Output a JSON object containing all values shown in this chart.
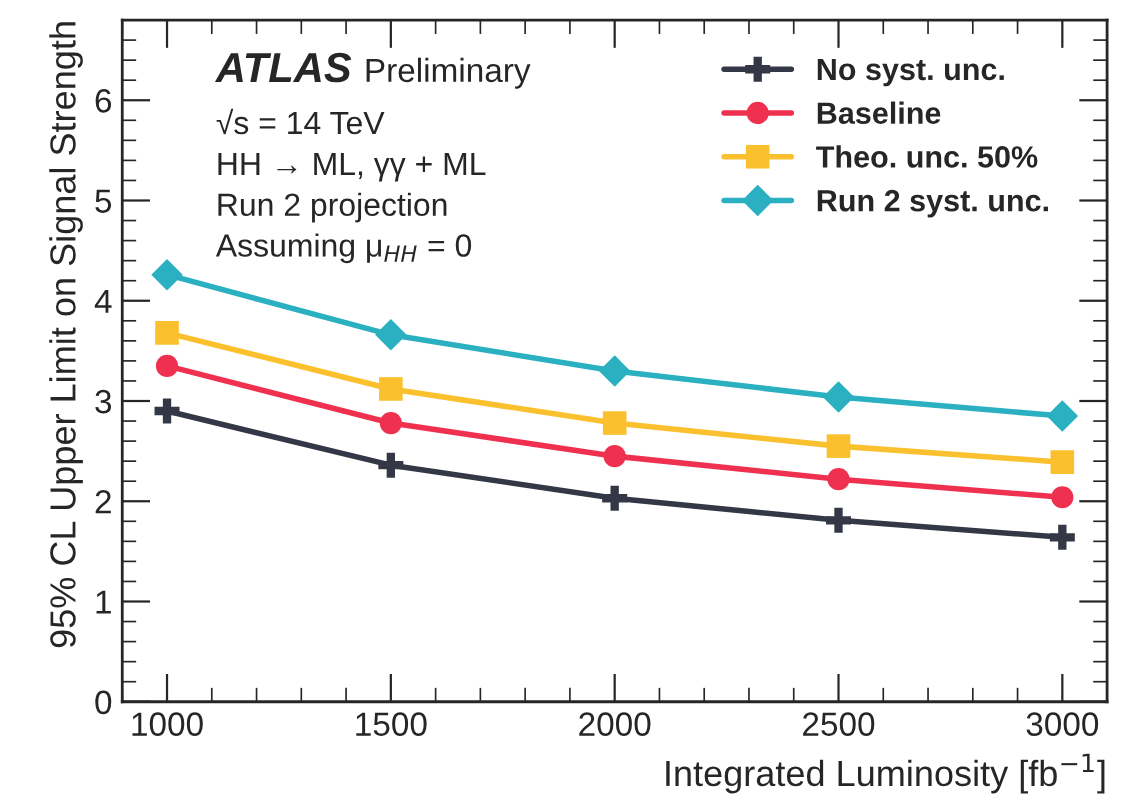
{
  "chart_data": {
    "type": "line",
    "xlabel": "Integrated Luminosity [fb$^{−1}$]",
    "ylabel": "95% CL Upper Limit on Signal Strength",
    "x": [
      1000,
      1500,
      2000,
      2500,
      3000
    ],
    "series": [
      {
        "name": "No syst. unc.",
        "color": "#343846",
        "marker": "cross",
        "values": [
          2.9,
          2.36,
          2.03,
          1.81,
          1.64
        ]
      },
      {
        "name": "Baseline",
        "color": "#f0304f",
        "marker": "circle",
        "values": [
          3.35,
          2.78,
          2.45,
          2.22,
          2.04
        ]
      },
      {
        "name": "Theo. unc. 50%",
        "color": "#fbc02d",
        "marker": "square",
        "values": [
          3.68,
          3.12,
          2.78,
          2.55,
          2.39
        ]
      },
      {
        "name": "Run 2 syst. unc.",
        "color": "#2ab0c0",
        "marker": "diamond",
        "values": [
          4.26,
          3.66,
          3.3,
          3.04,
          2.85
        ]
      }
    ],
    "annotations": [
      "ATLAS",
      "Preliminary",
      "√s = 14 TeV",
      "HH → ML, γγ + ML",
      "Run 2 projection",
      "Assuming μ$_{HH}$ = 0"
    ],
    "xlim": [
      900,
      3100
    ],
    "ylim": [
      0,
      6.8
    ],
    "xticks": [
      1000,
      1500,
      2000,
      2500,
      3000
    ],
    "yticks": [
      0,
      1,
      2,
      3,
      4,
      5,
      6
    ],
    "grid": false,
    "legend": "top right",
    "line_style": "solid"
  }
}
